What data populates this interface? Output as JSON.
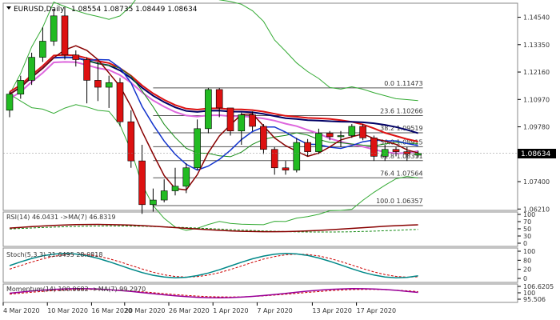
{
  "chart_data": {
    "type": "candlestick",
    "symbol_title": "EURUSD,Daily",
    "ohlc_header": "1.08554 1.08735 1.08449 1.08634",
    "current_price": "1.08634",
    "y_ticks": [
      "1.14540",
      "1.13350",
      "1.12160",
      "1.10970",
      "1.09780",
      "1.08590",
      "1.07400",
      "1.06210"
    ],
    "ylim": [
      1.0615,
      1.1515
    ],
    "x_ticks": [
      "4 Mar 2020",
      "10 Mar 2020",
      "16 Mar 2020",
      "20 Mar 2020",
      "26 Mar 2020",
      "1 Apr 2020",
      "7 Apr 2020",
      "13 Apr 2020",
      "17 Apr 2020"
    ],
    "candles": [
      {
        "o": 1.105,
        "h": 1.113,
        "l": 1.102,
        "c": 1.112
      },
      {
        "o": 1.112,
        "h": 1.12,
        "l": 1.11,
        "c": 1.118
      },
      {
        "o": 1.118,
        "h": 1.13,
        "l": 1.116,
        "c": 1.128
      },
      {
        "o": 1.128,
        "h": 1.141,
        "l": 1.126,
        "c": 1.135
      },
      {
        "o": 1.135,
        "h": 1.149,
        "l": 1.133,
        "c": 1.146
      },
      {
        "o": 1.146,
        "h": 1.15,
        "l": 1.127,
        "c": 1.129
      },
      {
        "o": 1.129,
        "h": 1.131,
        "l": 1.124,
        "c": 1.127
      },
      {
        "o": 1.127,
        "h": 1.128,
        "l": 1.108,
        "c": 1.118
      },
      {
        "o": 1.118,
        "h": 1.126,
        "l": 1.109,
        "c": 1.115
      },
      {
        "o": 1.115,
        "h": 1.12,
        "l": 1.106,
        "c": 1.117
      },
      {
        "o": 1.117,
        "h": 1.119,
        "l": 1.098,
        "c": 1.1
      },
      {
        "o": 1.1,
        "h": 1.105,
        "l": 1.08,
        "c": 1.083
      },
      {
        "o": 1.083,
        "h": 1.09,
        "l": 1.06,
        "c": 1.064
      },
      {
        "o": 1.064,
        "h": 1.071,
        "l": 1.061,
        "c": 1.066
      },
      {
        "o": 1.066,
        "h": 1.075,
        "l": 1.065,
        "c": 1.07
      },
      {
        "o": 1.07,
        "h": 1.08,
        "l": 1.068,
        "c": 1.072
      },
      {
        "o": 1.072,
        "h": 1.082,
        "l": 1.069,
        "c": 1.08
      },
      {
        "o": 1.08,
        "h": 1.101,
        "l": 1.079,
        "c": 1.097
      },
      {
        "o": 1.097,
        "h": 1.1147,
        "l": 1.095,
        "c": 1.114
      },
      {
        "o": 1.114,
        "h": 1.1147,
        "l": 1.102,
        "c": 1.106
      },
      {
        "o": 1.106,
        "h": 1.106,
        "l": 1.094,
        "c": 1.096
      },
      {
        "o": 1.096,
        "h": 1.104,
        "l": 1.09,
        "c": 1.103
      },
      {
        "o": 1.103,
        "h": 1.1045,
        "l": 1.096,
        "c": 1.098
      },
      {
        "o": 1.098,
        "h": 1.099,
        "l": 1.086,
        "c": 1.088
      },
      {
        "o": 1.088,
        "h": 1.089,
        "l": 1.077,
        "c": 1.08
      },
      {
        "o": 1.08,
        "h": 1.083,
        "l": 1.077,
        "c": 1.079
      },
      {
        "o": 1.079,
        "h": 1.093,
        "l": 1.078,
        "c": 1.091
      },
      {
        "o": 1.091,
        "h": 1.0925,
        "l": 1.085,
        "c": 1.087
      },
      {
        "o": 1.087,
        "h": 1.097,
        "l": 1.086,
        "c": 1.095
      },
      {
        "o": 1.095,
        "h": 1.096,
        "l": 1.092,
        "c": 1.0935
      },
      {
        "o": 1.0935,
        "h": 1.096,
        "l": 1.089,
        "c": 1.094
      },
      {
        "o": 1.094,
        "h": 1.099,
        "l": 1.093,
        "c": 1.098
      },
      {
        "o": 1.098,
        "h": 1.099,
        "l": 1.092,
        "c": 1.093
      },
      {
        "o": 1.093,
        "h": 1.094,
        "l": 1.083,
        "c": 1.085
      },
      {
        "o": 1.085,
        "h": 1.09,
        "l": 1.083,
        "c": 1.088
      },
      {
        "o": 1.088,
        "h": 1.089,
        "l": 1.085,
        "c": 1.087
      },
      {
        "o": 1.087,
        "h": 1.089,
        "l": 1.083,
        "c": 1.086
      },
      {
        "o": 1.0855,
        "h": 1.0874,
        "l": 1.0845,
        "c": 1.0863
      }
    ],
    "fibonacci": [
      {
        "label": "0.0 1.11473",
        "value": 1.11473
      },
      {
        "label": "23.6 1.10266",
        "value": 1.10266
      },
      {
        "label": "38.2 1.09519",
        "value": 1.09519
      },
      {
        "label": "50.0 1.08915",
        "value": 1.08915
      },
      {
        "label": "61.8 1.08311",
        "value": 1.08311
      },
      {
        "label": "76.4 1.07564",
        "value": 1.07564
      },
      {
        "label": "100.0 1.06357",
        "value": 1.06357
      }
    ],
    "indicators": {
      "rsi": {
        "label": "RSI(14) 46.0431 ->MA(7) 46.8319",
        "ticks": [
          "100",
          "70",
          "50",
          "30",
          "0"
        ]
      },
      "stoch": {
        "label": "Stoch(5,3,3) 21.6495 28.0818",
        "ticks": [
          "100",
          "80",
          "20",
          "0"
        ]
      },
      "momentum": {
        "label": "Momentum(14) 100.0682 ->MA(7) 99.2970",
        "ticks": [
          "106.6205",
          "100",
          "95.506"
        ]
      }
    },
    "colors": {
      "bull": "#22bb22",
      "bear": "#dd1111",
      "ma_blue": "#1133cc",
      "ma_dark": "#000066",
      "ma_red": "#dd1111",
      "ma_magenta": "#dd66dd",
      "ma_green": "#118811",
      "ma_dark_red": "#880000",
      "band": "#33aa33"
    }
  }
}
